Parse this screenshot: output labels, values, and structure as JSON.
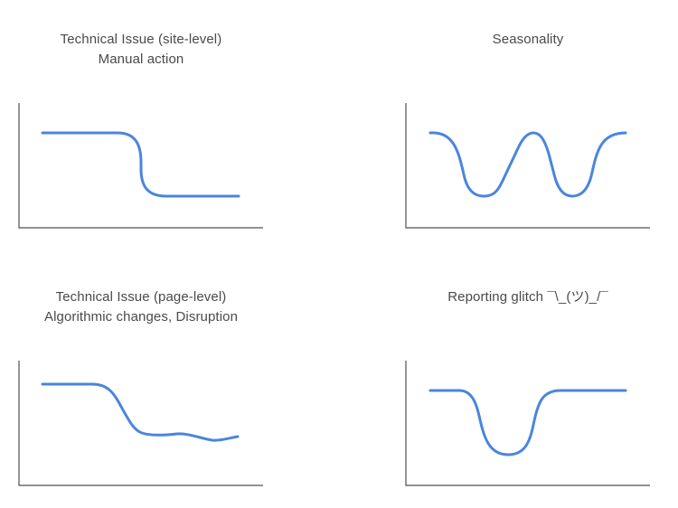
{
  "colors": {
    "line": "#4a85de",
    "axis": "#4f4f4f",
    "text": "#4a4a4a",
    "background": "#ffffff"
  },
  "panels": [
    {
      "id": "site-level",
      "title_lines": [
        "Technical Issue (site-level)",
        "Manual action"
      ],
      "pattern": "sudden drop, then flat low"
    },
    {
      "id": "seasonality",
      "title_lines": [
        "Seasonality"
      ],
      "pattern": "repeating dips and peaks"
    },
    {
      "id": "page-level",
      "title_lines": [
        "Technical Issue (page-level)",
        "Algorithmic changes, Disruption"
      ],
      "pattern": "gradual decline, then uneven low"
    },
    {
      "id": "reporting-glitch",
      "title_lines": [
        "Reporting glitch ¯\\_(ツ)_/¯"
      ],
      "pattern": "temporary dip, then full recovery"
    }
  ]
}
